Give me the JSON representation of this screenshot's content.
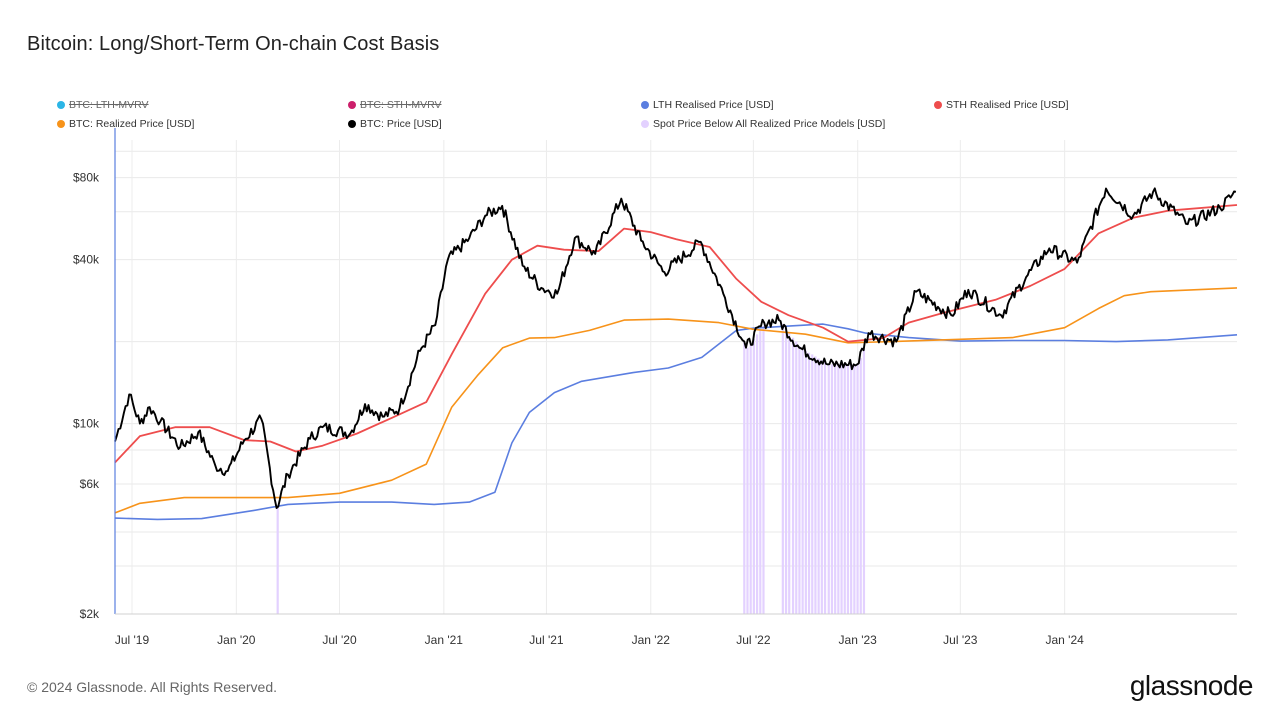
{
  "title": "Bitcoin: Long/Short-Term On-chain Cost Basis",
  "footer": "© 2024 Glassnode. All Rights Reserved.",
  "brand": "glassnode",
  "legend": [
    {
      "label": "BTC: LTH-MVRV",
      "color": "#2bb5e6",
      "disabled": true
    },
    {
      "label": "BTC: STH-MVRV",
      "color": "#cc1f6b",
      "disabled": true
    },
    {
      "label": "LTH Realised Price [USD]",
      "color": "#5b7ee0",
      "disabled": false
    },
    {
      "label": "STH Realised Price [USD]",
      "color": "#ee4d4d",
      "disabled": false
    },
    {
      "label": "BTC: Realized Price [USD]",
      "color": "#f7931a",
      "disabled": false
    },
    {
      "label": "BTC: Price [USD]",
      "color": "#000000",
      "disabled": false
    },
    {
      "label": "Spot Price Below All Realized Price Models [USD]",
      "color": "#e3d1ff",
      "disabled": false
    }
  ],
  "chart_data": {
    "type": "line",
    "title": "Bitcoin: Long/Short-Term On-chain Cost Basis",
    "y_scale": "log",
    "ylim": [
      2000,
      110000
    ],
    "y_ticks": [
      {
        "value": 2000,
        "label": "$2k"
      },
      {
        "value": 6000,
        "label": "$6k"
      },
      {
        "value": 10000,
        "label": "$10k"
      },
      {
        "value": 40000,
        "label": "$40k"
      },
      {
        "value": 80000,
        "label": "$80k"
      }
    ],
    "y_gridlines": [
      2000,
      3000,
      4000,
      6000,
      8000,
      10000,
      20000,
      40000,
      60000,
      80000,
      100000
    ],
    "xlim": [
      "2019-06-01",
      "2024-10-31"
    ],
    "x_ticks": [
      {
        "date": "2019-07-01",
        "label": "Jul '19"
      },
      {
        "date": "2020-01-01",
        "label": "Jan '20"
      },
      {
        "date": "2020-07-01",
        "label": "Jul '20"
      },
      {
        "date": "2021-01-01",
        "label": "Jan '21"
      },
      {
        "date": "2021-07-01",
        "label": "Jul '21"
      },
      {
        "date": "2022-01-01",
        "label": "Jan '22"
      },
      {
        "date": "2022-07-01",
        "label": "Jul '22"
      },
      {
        "date": "2023-01-01",
        "label": "Jan '23"
      },
      {
        "date": "2023-07-01",
        "label": "Jul '23"
      },
      {
        "date": "2024-01-01",
        "label": "Jan '24"
      }
    ],
    "series": [
      {
        "name": "LTH Realised Price [USD]",
        "color": "#5b7ee0",
        "width": 1.6,
        "points": [
          [
            "2019-06-01",
            4500
          ],
          [
            "2019-08-15",
            4450
          ],
          [
            "2019-11-01",
            4480
          ],
          [
            "2020-02-01",
            4800
          ],
          [
            "2020-04-01",
            5050
          ],
          [
            "2020-07-01",
            5150
          ],
          [
            "2020-10-01",
            5150
          ],
          [
            "2020-12-15",
            5050
          ],
          [
            "2021-02-15",
            5150
          ],
          [
            "2021-04-01",
            5600
          ],
          [
            "2021-05-01",
            8500
          ],
          [
            "2021-06-01",
            11000
          ],
          [
            "2021-07-15",
            13000
          ],
          [
            "2021-09-01",
            14300
          ],
          [
            "2021-12-01",
            15400
          ],
          [
            "2022-02-01",
            16000
          ],
          [
            "2022-04-01",
            17500
          ],
          [
            "2022-06-01",
            22000
          ],
          [
            "2022-07-01",
            22400
          ],
          [
            "2022-09-01",
            22800
          ],
          [
            "2022-11-01",
            23200
          ],
          [
            "2022-12-15",
            22300
          ],
          [
            "2023-01-15",
            21500
          ],
          [
            "2023-04-01",
            20700
          ],
          [
            "2023-07-01",
            20100
          ],
          [
            "2023-10-01",
            20200
          ],
          [
            "2024-01-01",
            20200
          ],
          [
            "2024-04-01",
            20000
          ],
          [
            "2024-07-01",
            20300
          ],
          [
            "2024-10-31",
            21200
          ]
        ]
      },
      {
        "name": "BTC: Realized Price [USD]",
        "color": "#f7931a",
        "width": 1.6,
        "points": [
          [
            "2019-06-01",
            4700
          ],
          [
            "2019-07-15",
            5100
          ],
          [
            "2019-10-01",
            5350
          ],
          [
            "2020-01-01",
            5350
          ],
          [
            "2020-04-01",
            5350
          ],
          [
            "2020-07-01",
            5550
          ],
          [
            "2020-10-01",
            6200
          ],
          [
            "2020-12-01",
            7100
          ],
          [
            "2021-01-15",
            11500
          ],
          [
            "2021-03-01",
            15000
          ],
          [
            "2021-04-15",
            19000
          ],
          [
            "2021-06-01",
            20600
          ],
          [
            "2021-07-15",
            20700
          ],
          [
            "2021-09-15",
            22000
          ],
          [
            "2021-11-15",
            24000
          ],
          [
            "2022-02-01",
            24200
          ],
          [
            "2022-05-01",
            23500
          ],
          [
            "2022-07-01",
            22200
          ],
          [
            "2022-10-01",
            21300
          ],
          [
            "2022-12-15",
            19800
          ],
          [
            "2023-03-01",
            20000
          ],
          [
            "2023-07-01",
            20400
          ],
          [
            "2023-10-01",
            20700
          ],
          [
            "2024-01-01",
            22500
          ],
          [
            "2024-03-01",
            26500
          ],
          [
            "2024-04-15",
            29500
          ],
          [
            "2024-06-01",
            30500
          ],
          [
            "2024-10-31",
            31500
          ]
        ]
      },
      {
        "name": "STH Realised Price [USD]",
        "color": "#ee4d4d",
        "width": 1.8,
        "points": [
          [
            "2019-06-01",
            7200
          ],
          [
            "2019-07-15",
            9000
          ],
          [
            "2019-09-15",
            9700
          ],
          [
            "2019-11-15",
            9700
          ],
          [
            "2020-01-15",
            8700
          ],
          [
            "2020-03-01",
            8600
          ],
          [
            "2020-04-15",
            7900
          ],
          [
            "2020-06-01",
            8300
          ],
          [
            "2020-08-01",
            9200
          ],
          [
            "2020-10-01",
            10500
          ],
          [
            "2020-12-01",
            12000
          ],
          [
            "2021-01-15",
            18000
          ],
          [
            "2021-03-15",
            30000
          ],
          [
            "2021-05-01",
            40000
          ],
          [
            "2021-06-15",
            45000
          ],
          [
            "2021-08-01",
            43500
          ],
          [
            "2021-10-01",
            43000
          ],
          [
            "2021-11-15",
            52000
          ],
          [
            "2022-01-01",
            50500
          ],
          [
            "2022-02-15",
            47500
          ],
          [
            "2022-04-15",
            44500
          ],
          [
            "2022-06-01",
            34000
          ],
          [
            "2022-07-15",
            28000
          ],
          [
            "2022-09-01",
            25000
          ],
          [
            "2022-11-01",
            22500
          ],
          [
            "2022-12-15",
            20000
          ],
          [
            "2023-02-15",
            20600
          ],
          [
            "2023-04-01",
            23500
          ],
          [
            "2023-06-01",
            25500
          ],
          [
            "2023-09-01",
            28500
          ],
          [
            "2023-11-01",
            32000
          ],
          [
            "2024-01-01",
            37000
          ],
          [
            "2024-03-01",
            50000
          ],
          [
            "2024-05-01",
            57000
          ],
          [
            "2024-07-01",
            60500
          ],
          [
            "2024-10-31",
            63500
          ]
        ]
      },
      {
        "name": "BTC: Price [USD]",
        "color": "#000000",
        "width": 1.9,
        "points": [
          [
            "2019-06-01",
            8600
          ],
          [
            "2019-06-26",
            12800
          ],
          [
            "2019-07-15",
            10000
          ],
          [
            "2019-08-01",
            11500
          ],
          [
            "2019-08-20",
            10200
          ],
          [
            "2019-09-24",
            8200
          ],
          [
            "2019-10-26",
            9300
          ],
          [
            "2019-11-25",
            7000
          ],
          [
            "2019-12-17",
            6700
          ],
          [
            "2020-01-15",
            8700
          ],
          [
            "2020-02-14",
            10400
          ],
          [
            "2020-03-12",
            4900
          ],
          [
            "2020-04-01",
            6500
          ],
          [
            "2020-05-10",
            8800
          ],
          [
            "2020-06-01",
            9700
          ],
          [
            "2020-07-20",
            9200
          ],
          [
            "2020-08-15",
            11800
          ],
          [
            "2020-09-15",
            10600
          ],
          [
            "2020-10-15",
            11400
          ],
          [
            "2020-11-20",
            18500
          ],
          [
            "2020-12-17",
            23000
          ],
          [
            "2021-01-08",
            40000
          ],
          [
            "2021-02-15",
            48000
          ],
          [
            "2021-03-15",
            58000
          ],
          [
            "2021-04-14",
            63000
          ],
          [
            "2021-05-20",
            38000
          ],
          [
            "2021-06-22",
            31500
          ],
          [
            "2021-07-20",
            30000
          ],
          [
            "2021-08-20",
            48000
          ],
          [
            "2021-09-25",
            42000
          ],
          [
            "2021-11-10",
            67000
          ],
          [
            "2021-12-15",
            47000
          ],
          [
            "2022-01-25",
            36000
          ],
          [
            "2022-03-30",
            46500
          ],
          [
            "2022-05-12",
            29000
          ],
          [
            "2022-06-18",
            19000
          ],
          [
            "2022-07-20",
            23500
          ],
          [
            "2022-08-15",
            24000
          ],
          [
            "2022-09-20",
            19000
          ],
          [
            "2022-11-09",
            16500
          ],
          [
            "2022-12-31",
            16500
          ],
          [
            "2023-01-20",
            21500
          ],
          [
            "2023-03-10",
            20000
          ],
          [
            "2023-04-14",
            30500
          ],
          [
            "2023-06-15",
            25000
          ],
          [
            "2023-07-15",
            31000
          ],
          [
            "2023-09-11",
            25000
          ],
          [
            "2023-10-25",
            34500
          ],
          [
            "2023-12-05",
            44000
          ],
          [
            "2024-01-23",
            39000
          ],
          [
            "2024-03-14",
            73000
          ],
          [
            "2024-05-01",
            58000
          ],
          [
            "2024-06-05",
            71000
          ],
          [
            "2024-08-05",
            54000
          ],
          [
            "2024-10-01",
            62000
          ],
          [
            "2024-10-29",
            71000
          ]
        ]
      }
    ],
    "highlight_bars": {
      "name": "Spot Price Below All Realized Price Models [USD]",
      "color": "#e3d1ff",
      "ranges": [
        [
          "2020-03-12",
          "2020-03-17"
        ],
        [
          "2022-06-13",
          "2022-07-17"
        ],
        [
          "2022-08-20",
          "2022-09-01"
        ],
        [
          "2022-09-07",
          "2022-11-08"
        ],
        [
          "2022-11-09",
          "2023-01-12"
        ]
      ]
    }
  }
}
